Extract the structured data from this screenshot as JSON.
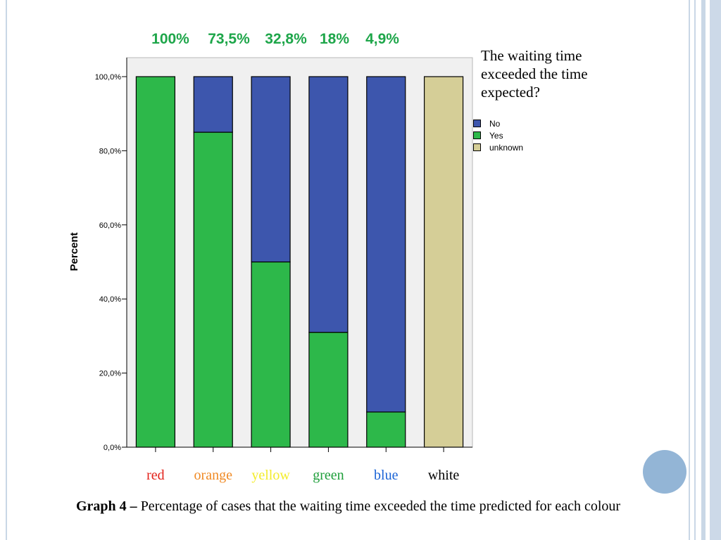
{
  "theme": {
    "colors": {
      "no": "#3d56ad",
      "yes": "#2db84a",
      "unknown": "#d5ce97",
      "plot_bg": "#f0f0f0",
      "top_label": "#1ea64a"
    }
  },
  "chart_data": {
    "type": "bar",
    "stacked": true,
    "categories": [
      "red",
      "orange",
      "yellow",
      "green",
      "blue",
      "white"
    ],
    "category_label_colors": [
      "#e32119",
      "#f08a24",
      "#f3ec2a",
      "#1e9e3a",
      "#1a63d6",
      "#000000"
    ],
    "series": [
      {
        "name": "Yes",
        "values": [
          100,
          85,
          50,
          31,
          9.5,
          0
        ]
      },
      {
        "name": "No",
        "values": [
          0,
          15,
          50,
          69,
          90.5,
          0
        ]
      },
      {
        "name": "unknown",
        "values": [
          0,
          0,
          0,
          0,
          0,
          100
        ]
      }
    ],
    "top_labels": [
      "100%",
      "73,5%",
      "32,8%",
      "18%",
      "4,9%"
    ],
    "ylabel": "Percent",
    "ylim": [
      0,
      100
    ],
    "yticks": [
      "0,0%",
      "20,0%",
      "40,0%",
      "60,0%",
      "80,0%",
      "100,0%"
    ],
    "grid": false,
    "legend_title": "The waiting time exceeded the time expected?",
    "legend_position": "right"
  },
  "caption": {
    "label": "Graph 4 –",
    "text": " Percentage of cases that the waiting time exceeded the time predicted for each colour"
  }
}
